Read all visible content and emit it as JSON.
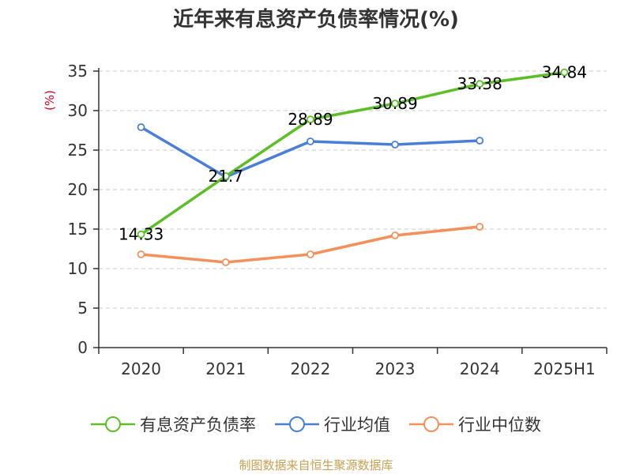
{
  "chart_data": {
    "type": "line",
    "title": "近年来有息资产负债率情况(%)",
    "ylabel": "(%)",
    "xlabel": "",
    "categories": [
      "2020",
      "2021",
      "2022",
      "2023",
      "2024",
      "2025H1"
    ],
    "ylim": [
      0,
      35
    ],
    "yticks": [
      0,
      5,
      10,
      15,
      20,
      25,
      30,
      35
    ],
    "grid": true,
    "legend_position": "bottom",
    "series": [
      {
        "name": "有息资产负债率",
        "color": "#5cbf28",
        "values": [
          14.33,
          21.7,
          28.89,
          30.89,
          33.38,
          34.84
        ],
        "labels": [
          "14.33",
          "21.7",
          "28.89",
          "30.89",
          "33.38",
          "34.84"
        ]
      },
      {
        "name": "行业均值",
        "color": "#4a7fd8",
        "values": [
          27.9,
          21.6,
          26.1,
          25.7,
          26.2,
          null
        ]
      },
      {
        "name": "行业中位数",
        "color": "#f4915b",
        "values": [
          11.8,
          10.8,
          11.8,
          14.2,
          15.3,
          null
        ]
      }
    ]
  },
  "source": "制图数据来自恒生聚源数据库"
}
